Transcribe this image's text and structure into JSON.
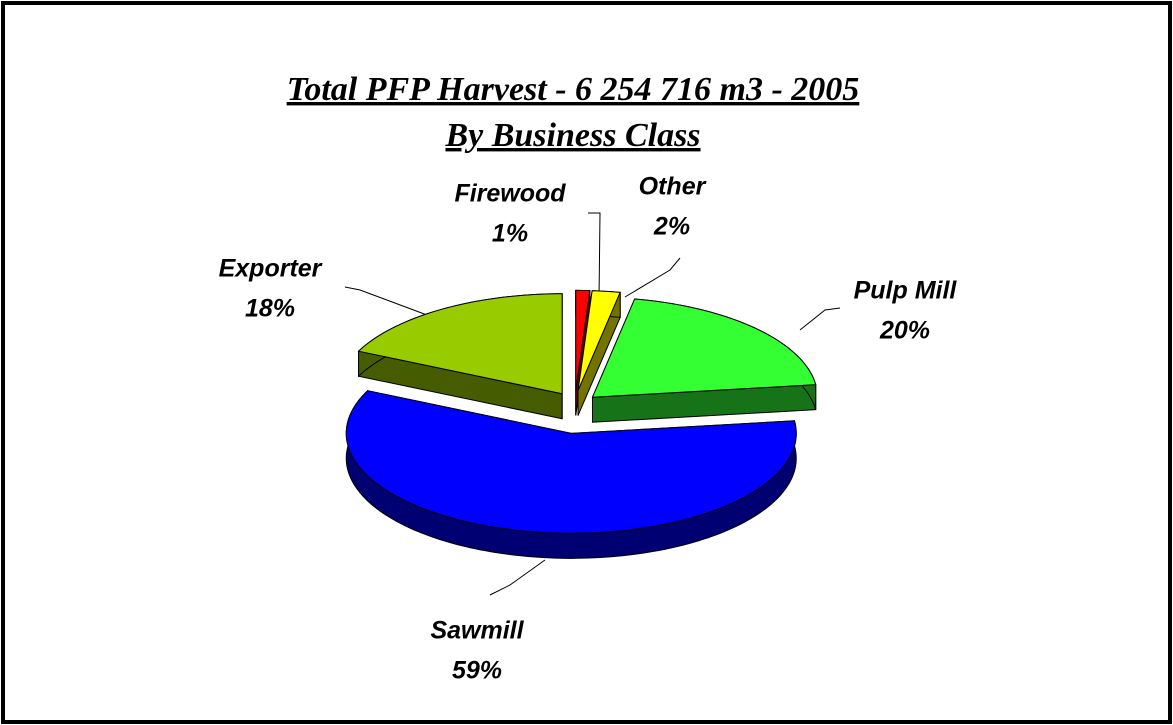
{
  "chart_data": {
    "type": "pie",
    "title": "Total PFP Harvest - 6 254 716 m3 - 2005",
    "subtitle": "By Business Class",
    "categories": [
      "Firewood",
      "Other",
      "Pulp Mill",
      "Sawmill",
      "Exporter"
    ],
    "values": [
      1,
      2,
      20,
      59,
      18
    ],
    "value_labels": [
      "1%",
      "2%",
      "20%",
      "59%",
      "18%"
    ],
    "colors": [
      "#ff0000",
      "#ffff00",
      "#33ff33",
      "#0000ff",
      "#99cc00"
    ]
  }
}
